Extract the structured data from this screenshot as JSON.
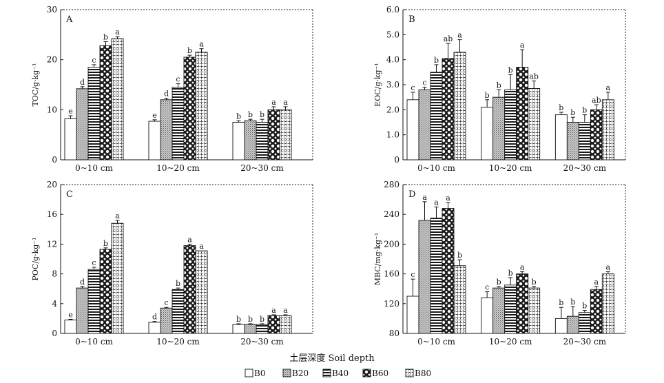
{
  "figure": {
    "xlabel": "土层深度 Soil depth"
  },
  "legend": [
    "B0",
    "B20",
    "B40",
    "B60",
    "B80"
  ],
  "categories": [
    "0~10 cm",
    "10~20 cm",
    "20~30 cm"
  ],
  "chart_data": [
    {
      "type": "bar",
      "panel": "A",
      "ylabel": "TOC/g·kg⁻¹",
      "ylim": [
        0,
        30
      ],
      "yticks": [
        0,
        10,
        20,
        30
      ],
      "ytick_labels": [
        "0",
        "10",
        "20",
        "30"
      ],
      "categories": [
        "0~10 cm",
        "10~20 cm",
        "20~30 cm"
      ],
      "series": [
        {
          "name": "B0",
          "values": [
            8.2,
            7.7,
            7.5
          ],
          "errors": [
            0.6,
            0.3,
            0.3
          ],
          "sig": [
            "e",
            "e",
            "b"
          ]
        },
        {
          "name": "B20",
          "values": [
            14.2,
            12.0,
            7.8
          ],
          "errors": [
            0.4,
            0.3,
            0.3
          ],
          "sig": [
            "d",
            "d",
            "b"
          ]
        },
        {
          "name": "B40",
          "values": [
            18.5,
            14.5,
            7.5
          ],
          "errors": [
            0.5,
            0.7,
            0.6
          ],
          "sig": [
            "c",
            "c",
            "b"
          ]
        },
        {
          "name": "B60",
          "values": [
            22.8,
            20.5,
            10.0
          ],
          "errors": [
            0.8,
            0.4,
            0.6
          ],
          "sig": [
            "b",
            "b",
            "a"
          ]
        },
        {
          "name": "B80",
          "values": [
            24.2,
            21.5,
            10.0
          ],
          "errors": [
            0.4,
            0.7,
            0.6
          ],
          "sig": [
            "a",
            "a",
            "a"
          ]
        }
      ]
    },
    {
      "type": "bar",
      "panel": "B",
      "ylabel": "EOC/g·kg⁻¹",
      "ylim": [
        0,
        6
      ],
      "yticks": [
        0,
        1,
        2,
        3,
        4,
        5,
        6
      ],
      "ytick_labels": [
        "0",
        "1.0",
        "2.0",
        "3.0",
        "4.0",
        "5.0",
        "6.0"
      ],
      "categories": [
        "0~10 cm",
        "10~20 cm",
        "20~30 cm"
      ],
      "series": [
        {
          "name": "B0",
          "values": [
            2.4,
            2.1,
            1.8
          ],
          "errors": [
            0.3,
            0.3,
            0.1
          ],
          "sig": [
            "c",
            "b",
            "b"
          ]
        },
        {
          "name": "B20",
          "values": [
            2.8,
            2.5,
            1.5
          ],
          "errors": [
            0.1,
            0.3,
            0.2
          ],
          "sig": [
            "c",
            "b",
            "b"
          ]
        },
        {
          "name": "B40",
          "values": [
            3.5,
            2.8,
            1.5
          ],
          "errors": [
            0.3,
            0.6,
            0.3
          ],
          "sig": [
            "b",
            "b",
            "b"
          ]
        },
        {
          "name": "B60",
          "values": [
            4.05,
            3.7,
            2.0
          ],
          "errors": [
            0.6,
            0.7,
            0.2
          ],
          "sig": [
            "ab",
            "a",
            "ab"
          ]
        },
        {
          "name": "B80",
          "values": [
            4.3,
            2.85,
            2.4
          ],
          "errors": [
            0.5,
            0.3,
            0.3
          ],
          "sig": [
            "a",
            "ab",
            "a"
          ]
        }
      ]
    },
    {
      "type": "bar",
      "panel": "C",
      "ylabel": "POC/g·kg⁻¹",
      "ylim": [
        0,
        20
      ],
      "yticks": [
        0,
        4,
        8,
        12,
        16,
        20
      ],
      "ytick_labels": [
        "0",
        "4",
        "8",
        "12",
        "16",
        "20"
      ],
      "categories": [
        "0~10 cm",
        "10~20 cm",
        "20~30 cm"
      ],
      "series": [
        {
          "name": "B0",
          "values": [
            1.8,
            1.5,
            1.2
          ],
          "errors": [
            0.1,
            0.1,
            0.1
          ],
          "sig": [
            "e",
            "d",
            "b"
          ]
        },
        {
          "name": "B20",
          "values": [
            6.1,
            3.4,
            1.2
          ],
          "errors": [
            0.2,
            0.1,
            0.1
          ],
          "sig": [
            "d",
            "c",
            "b"
          ]
        },
        {
          "name": "B40",
          "values": [
            8.6,
            5.9,
            1.2
          ],
          "errors": [
            0.3,
            0.2,
            0.1
          ],
          "sig": [
            "c",
            "b",
            "b"
          ]
        },
        {
          "name": "B60",
          "values": [
            11.3,
            11.8,
            2.4
          ],
          "errors": [
            0.2,
            0.2,
            0.1
          ],
          "sig": [
            "b",
            "a",
            "a"
          ]
        },
        {
          "name": "B80",
          "values": [
            14.8,
            11.1,
            2.4
          ],
          "errors": [
            0.4,
            0.0,
            0.1
          ],
          "sig": [
            "a",
            "a",
            "a"
          ]
        }
      ]
    },
    {
      "type": "bar",
      "panel": "D",
      "ylabel": "MBC/mg·kg⁻¹",
      "ylim": [
        80,
        280
      ],
      "yticks": [
        80,
        120,
        160,
        200,
        240,
        280
      ],
      "ytick_labels": [
        "80",
        "120",
        "160",
        "200",
        "240",
        "280"
      ],
      "categories": [
        "0~10 cm",
        "10~20 cm",
        "20~30 cm"
      ],
      "series": [
        {
          "name": "B0",
          "values": [
            130,
            128,
            100
          ],
          "errors": [
            23,
            8,
            15
          ],
          "sig": [
            "c",
            "c",
            "b"
          ]
        },
        {
          "name": "B20",
          "values": [
            232,
            141,
            103
          ],
          "errors": [
            25,
            2,
            13
          ],
          "sig": [
            "a",
            "b",
            "b"
          ]
        },
        {
          "name": "B40",
          "values": [
            235,
            145,
            108
          ],
          "errors": [
            15,
            10,
            3
          ],
          "sig": [
            "a",
            "b",
            "b"
          ]
        },
        {
          "name": "B60",
          "values": [
            248,
            160,
            139
          ],
          "errors": [
            8,
            3,
            4
          ],
          "sig": [
            "a",
            "a",
            "a"
          ]
        },
        {
          "name": "B80",
          "values": [
            171,
            141,
            160
          ],
          "errors": [
            8,
            2,
            3
          ],
          "sig": [
            "b",
            "b",
            "a"
          ]
        }
      ]
    }
  ]
}
